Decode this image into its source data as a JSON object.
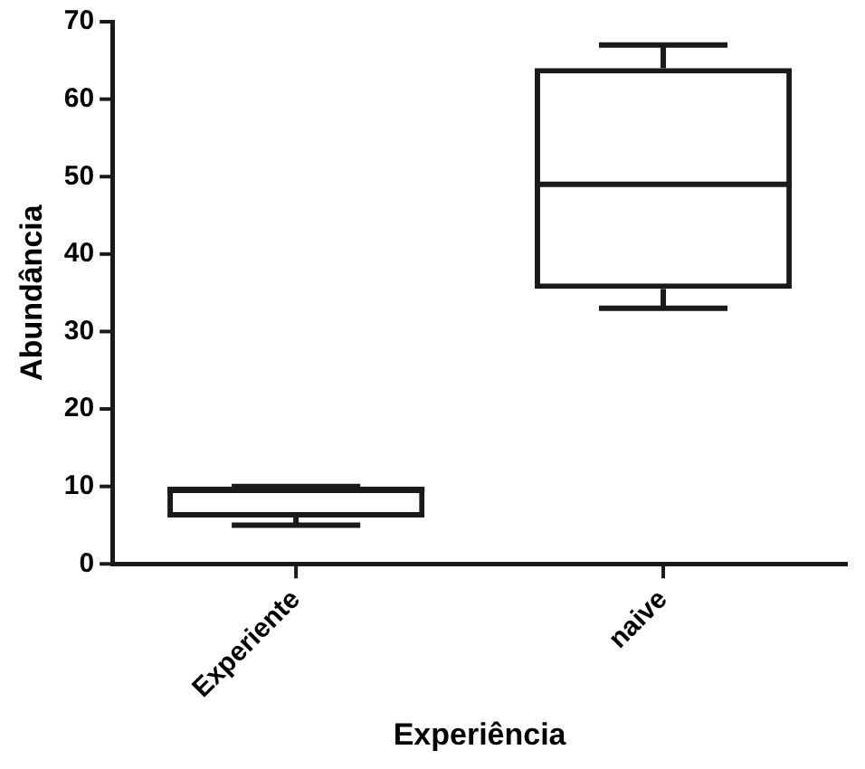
{
  "chart_data": {
    "type": "box",
    "xlabel": "Experiência",
    "ylabel": "Abundância",
    "categories": [
      "Experiente",
      "naive"
    ],
    "boxes": [
      {
        "low": 5,
        "q1": 6,
        "median": 9.5,
        "q3": 10,
        "high": 10
      },
      {
        "low": 33,
        "q1": 35.5,
        "median": 49,
        "q3": 64,
        "high": 67
      }
    ],
    "color": "#1a1a1a",
    "ylim": [
      0,
      70
    ],
    "yticks": [
      0,
      10,
      20,
      30,
      40,
      50,
      60,
      70
    ],
    "grid": false,
    "legend": false
  }
}
